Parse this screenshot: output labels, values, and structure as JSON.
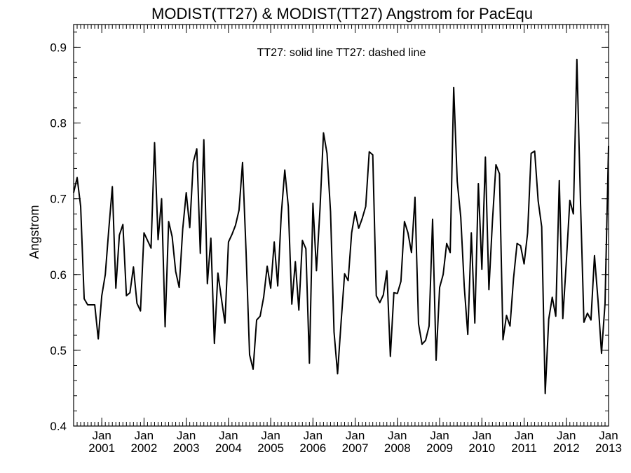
{
  "chart_data": {
    "type": "line",
    "title": "MODIST(TT27) & MODIST(TT27)  Angstrom for PacEqu",
    "annotation": "TT27: solid line   TT27: dashed line",
    "ylabel": "Angstrom",
    "xlabel": "",
    "xlim": [
      "2000-05",
      "2013-01"
    ],
    "ylim": [
      0.4,
      0.93
    ],
    "y_ticks": [
      "0.4",
      "0.5",
      "0.6",
      "0.7",
      "0.8",
      "0.9"
    ],
    "x_tick_labels": [
      {
        "date": "2001-01",
        "month": "Jan",
        "year": "2001"
      },
      {
        "date": "2002-01",
        "month": "Jan",
        "year": "2002"
      },
      {
        "date": "2003-01",
        "month": "Jan",
        "year": "2003"
      },
      {
        "date": "2004-01",
        "month": "Jan",
        "year": "2004"
      },
      {
        "date": "2005-01",
        "month": "Jan",
        "year": "2005"
      },
      {
        "date": "2006-01",
        "month": "Jan",
        "year": "2006"
      },
      {
        "date": "2007-01",
        "month": "Jan",
        "year": "2007"
      },
      {
        "date": "2008-01",
        "month": "Jan",
        "year": "2008"
      },
      {
        "date": "2009-01",
        "month": "Jan",
        "year": "2009"
      },
      {
        "date": "2010-01",
        "month": "Jan",
        "year": "2010"
      },
      {
        "date": "2011-01",
        "month": "Jan",
        "year": "2011"
      },
      {
        "date": "2012-01",
        "month": "Jan",
        "year": "2012"
      },
      {
        "date": "2013-01",
        "month": "Jan",
        "year": "2013"
      }
    ],
    "grid": false,
    "legend": "none",
    "line_color": "#000000",
    "series": [
      {
        "style": "solid",
        "x": [
          "2000-05",
          "2000-06",
          "2000-07",
          "2000-08",
          "2000-09",
          "2000-10",
          "2000-11",
          "2000-12",
          "2001-01",
          "2001-02",
          "2001-03",
          "2001-04",
          "2001-05",
          "2001-06",
          "2001-07",
          "2001-08",
          "2001-09",
          "2001-10",
          "2001-11",
          "2001-12",
          "2002-01",
          "2002-02",
          "2002-03",
          "2002-04",
          "2002-05",
          "2002-06",
          "2002-07",
          "2002-08",
          "2002-09",
          "2002-10",
          "2002-11",
          "2002-12",
          "2003-01",
          "2003-02",
          "2003-03",
          "2003-04",
          "2003-05",
          "2003-06",
          "2003-07",
          "2003-08",
          "2003-09",
          "2003-10",
          "2003-11",
          "2003-12",
          "2004-01",
          "2004-02",
          "2004-03",
          "2004-04",
          "2004-05",
          "2004-06",
          "2004-07",
          "2004-08",
          "2004-09",
          "2004-10",
          "2004-11",
          "2004-12",
          "2005-01",
          "2005-02",
          "2005-03",
          "2005-04",
          "2005-05",
          "2005-06",
          "2005-07",
          "2005-08",
          "2005-09",
          "2005-10",
          "2005-11",
          "2005-12",
          "2006-01",
          "2006-02",
          "2006-03",
          "2006-04",
          "2006-05",
          "2006-06",
          "2006-07",
          "2006-08",
          "2006-09",
          "2006-10",
          "2006-11",
          "2006-12",
          "2007-01",
          "2007-02",
          "2007-03",
          "2007-04",
          "2007-05",
          "2007-06",
          "2007-07",
          "2007-08",
          "2007-09",
          "2007-10",
          "2007-11",
          "2007-12",
          "2008-01",
          "2008-02",
          "2008-03",
          "2008-04",
          "2008-05",
          "2008-06",
          "2008-07",
          "2008-08",
          "2008-09",
          "2008-10",
          "2008-11",
          "2008-12",
          "2009-01",
          "2009-02",
          "2009-03",
          "2009-04",
          "2009-05",
          "2009-06",
          "2009-07",
          "2009-08",
          "2009-09",
          "2009-10",
          "2009-11",
          "2009-12",
          "2010-01",
          "2010-02",
          "2010-03",
          "2010-04",
          "2010-05",
          "2010-06",
          "2010-07",
          "2010-08",
          "2010-09",
          "2010-10",
          "2010-11",
          "2010-12",
          "2011-01",
          "2011-02",
          "2011-03",
          "2011-04",
          "2011-05",
          "2011-06",
          "2011-07",
          "2011-08",
          "2011-09",
          "2011-10",
          "2011-11",
          "2011-12",
          "2012-01",
          "2012-02",
          "2012-03",
          "2012-04",
          "2012-05",
          "2012-06",
          "2012-07",
          "2012-08",
          "2012-09",
          "2012-10",
          "2012-11",
          "2012-12",
          "2013-01"
        ],
        "values": [
          0.708,
          0.728,
          0.69,
          0.568,
          0.56,
          0.56,
          0.56,
          0.515,
          0.572,
          0.6,
          0.66,
          0.716,
          0.582,
          0.652,
          0.666,
          0.572,
          0.576,
          0.61,
          0.562,
          0.552,
          0.655,
          0.645,
          0.635,
          0.774,
          0.646,
          0.7,
          0.531,
          0.67,
          0.65,
          0.604,
          0.583,
          0.66,
          0.708,
          0.662,
          0.748,
          0.766,
          0.628,
          0.778,
          0.588,
          0.648,
          0.509,
          0.602,
          0.568,
          0.536,
          0.643,
          0.653,
          0.665,
          0.685,
          0.748,
          0.63,
          0.494,
          0.475,
          0.54,
          0.545,
          0.57,
          0.611,
          0.582,
          0.643,
          0.585,
          0.679,
          0.738,
          0.69,
          0.561,
          0.617,
          0.553,
          0.645,
          0.634,
          0.483,
          0.694,
          0.605,
          0.686,
          0.787,
          0.76,
          0.683,
          0.524,
          0.469,
          0.537,
          0.601,
          0.592,
          0.655,
          0.683,
          0.661,
          0.674,
          0.69,
          0.762,
          0.758,
          0.572,
          0.563,
          0.573,
          0.605,
          0.492,
          0.576,
          0.575,
          0.591,
          0.67,
          0.655,
          0.629,
          0.702,
          0.535,
          0.508,
          0.513,
          0.532,
          0.673,
          0.487,
          0.583,
          0.6,
          0.641,
          0.629,
          0.847,
          0.723,
          0.676,
          0.584,
          0.521,
          0.655,
          0.536,
          0.72,
          0.607,
          0.755,
          0.58,
          0.67,
          0.745,
          0.733,
          0.514,
          0.546,
          0.532,
          0.595,
          0.641,
          0.638,
          0.614,
          0.655,
          0.76,
          0.763,
          0.697,
          0.663,
          0.443,
          0.541,
          0.57,
          0.545,
          0.724,
          0.542,
          0.617,
          0.698,
          0.68,
          0.884,
          0.7,
          0.537,
          0.549,
          0.54,
          0.625,
          0.566,
          0.496,
          0.562,
          0.77
        ]
      }
    ]
  }
}
